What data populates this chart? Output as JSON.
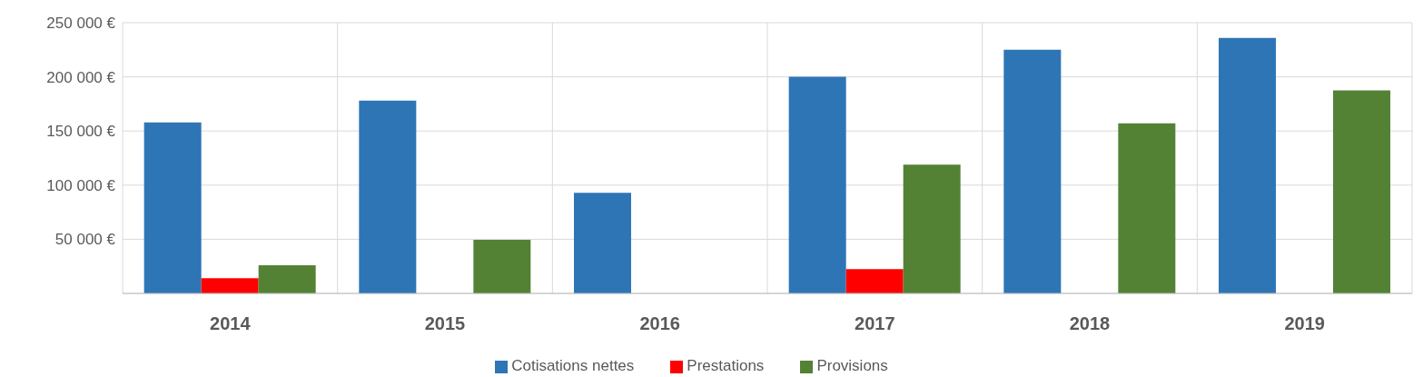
{
  "chart_data": {
    "type": "bar",
    "categories": [
      "2014",
      "2015",
      "2016",
      "2017",
      "2018",
      "2019"
    ],
    "series": [
      {
        "name": "Cotisations nettes",
        "color": "#2e75b6",
        "values": [
          158000,
          178000,
          93000,
          200000,
          225000,
          236000
        ]
      },
      {
        "name": "Prestations",
        "color": "#ff0000",
        "values": [
          14000,
          0,
          0,
          22500,
          0,
          0
        ]
      },
      {
        "name": "Provisions",
        "color": "#548235",
        "values": [
          26000,
          49500,
          0,
          119000,
          157000,
          187500
        ]
      }
    ],
    "ylim": [
      0,
      250000
    ],
    "yticks": [
      {
        "value": 50000,
        "label": "50 000 €"
      },
      {
        "value": 100000,
        "label": "100 000 €"
      },
      {
        "value": 150000,
        "label": "150 000 €"
      },
      {
        "value": 200000,
        "label": "200 000 €"
      },
      {
        "value": 250000,
        "label": "250 000 €"
      }
    ],
    "grid": true,
    "legend": "bottom"
  }
}
